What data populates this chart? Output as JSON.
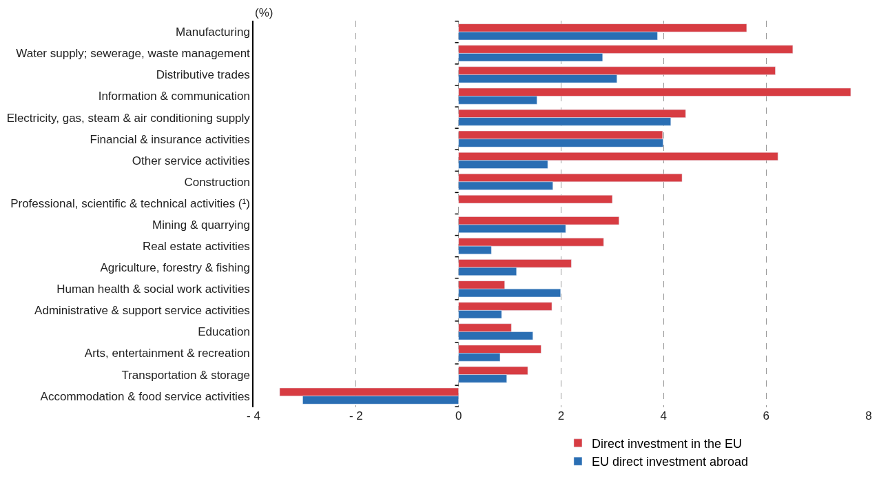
{
  "chart_data": {
    "type": "bar",
    "orientation": "horizontal",
    "ylabel": "(%)",
    "categories": [
      "Manufacturing",
      "Water supply; sewerage, waste management",
      "Distributive trades",
      "Information & communication",
      "Electricity, gas, steam & air conditioning supply",
      "Financial & insurance activities",
      "Other service activities",
      "Construction",
      "Professional, scientific & technical activities (¹)",
      "Mining & quarrying",
      "Real estate activities",
      "Agriculture, forestry & fishing",
      "Human health & social work activities",
      "Administrative & support service activities",
      "Education",
      "Arts, entertainment & recreation",
      "Transportation & storage",
      "Accommodation & food service activities"
    ],
    "series": [
      {
        "name": "Direct investment in the EU",
        "color": "#d73c42",
        "values": [
          5.62,
          6.52,
          6.18,
          7.65,
          4.43,
          3.98,
          6.23,
          4.36,
          3.0,
          3.13,
          2.83,
          2.2,
          0.9,
          1.82,
          1.03,
          1.61,
          1.35,
          -3.49
        ]
      },
      {
        "name": "EU direct investment abroad",
        "color": "#2a6eb3",
        "values": [
          3.88,
          2.81,
          3.09,
          1.53,
          4.14,
          3.99,
          1.74,
          1.84,
          null,
          2.09,
          0.64,
          1.13,
          1.99,
          0.84,
          1.45,
          0.81,
          0.94,
          -3.04
        ]
      }
    ],
    "xlim": [
      -4,
      8
    ],
    "xticks": [
      {
        "value": -4,
        "label": "- 4"
      },
      {
        "value": -2,
        "label": "- 2"
      },
      0,
      2,
      4,
      6,
      8
    ],
    "grid": "x",
    "legend": "bottom"
  }
}
